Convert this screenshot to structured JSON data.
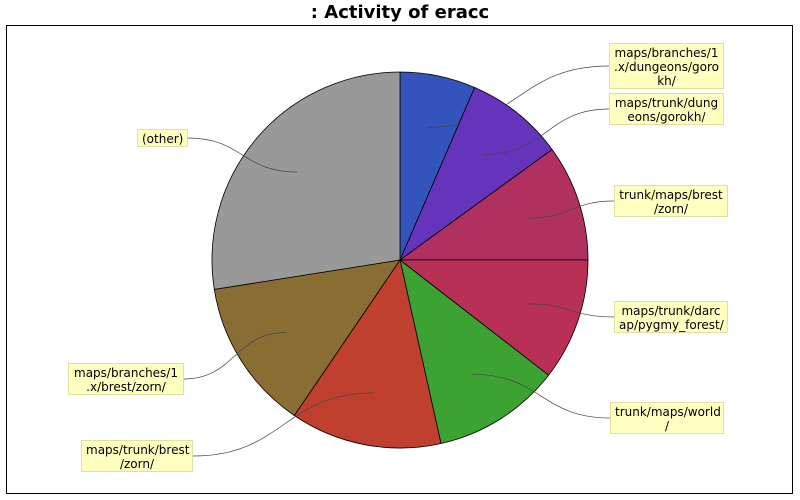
{
  "chart_data": {
    "type": "pie",
    "title": ": Activity of eracc",
    "slices": [
      {
        "label": "maps/branches/1\n.x/dungeons/goro\nkh/",
        "value": 6.5,
        "color": "#3355bb"
      },
      {
        "label": "maps/trunk/dung\neons/gorokh/",
        "value": 8.5,
        "color": "#6633bb"
      },
      {
        "label": "trunk/maps/brest\n/zorn/",
        "value": 10.0,
        "color": "#b03060"
      },
      {
        "label": "maps/trunk/darc\nap/pygmy_forest/",
        "value": 10.5,
        "color": "#b83055"
      },
      {
        "label": "trunk/maps/world\n/",
        "value": 11.0,
        "color": "#3ca333"
      },
      {
        "label": "maps/trunk/brest\n/zorn/",
        "value": 13.0,
        "color": "#c04030"
      },
      {
        "label": "maps/branches/1\n.x/brest/zorn/",
        "value": 13.0,
        "color": "#8a6d33"
      },
      {
        "label": "(other)",
        "value": 27.5,
        "color": "#999999"
      }
    ]
  }
}
